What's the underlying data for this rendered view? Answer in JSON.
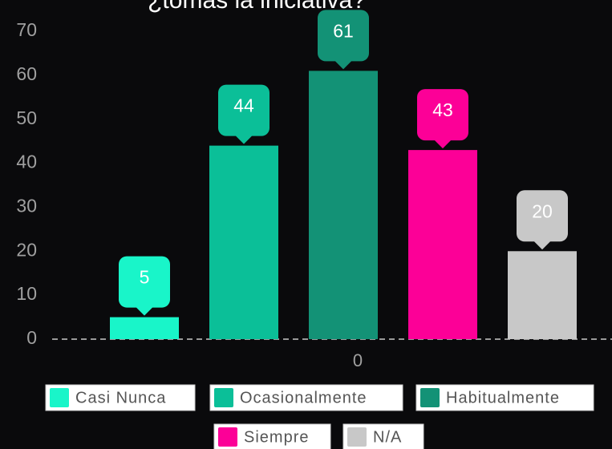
{
  "chart_data": {
    "type": "bar",
    "title": "¿tomas la iniciativa?",
    "categories": [
      "0"
    ],
    "series": [
      {
        "name": "Casi Nunca",
        "color": "#19f5c9",
        "values": [
          5
        ]
      },
      {
        "name": "Ocasionalmente",
        "color": "#0bbf98",
        "values": [
          44
        ]
      },
      {
        "name": "Habitualmente",
        "color": "#139276",
        "values": [
          61
        ]
      },
      {
        "name": "Siempre",
        "color": "#fc0097",
        "values": [
          43
        ]
      },
      {
        "name": "N/A",
        "color": "#c8c8c8",
        "values": [
          20
        ]
      }
    ],
    "ylim": [
      0,
      70
    ],
    "yticks": [
      0,
      10,
      20,
      30,
      40,
      50,
      60,
      70
    ]
  }
}
